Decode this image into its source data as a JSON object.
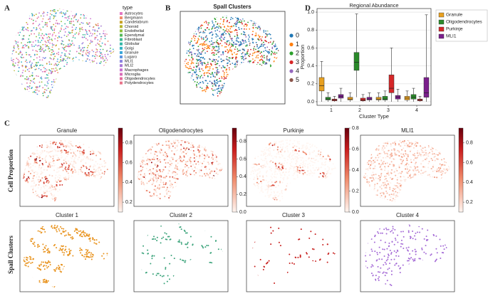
{
  "panel_labels": [
    "A",
    "B",
    "C",
    "D"
  ],
  "panel_a": {
    "legend_title": "type",
    "types": [
      {
        "name": "Astrocytes",
        "color": "#e377c2"
      },
      {
        "name": "Bergmann",
        "color": "#f08c6a"
      },
      {
        "name": "Candelabrum",
        "color": "#c9a227"
      },
      {
        "name": "Choroid",
        "color": "#b5b52a"
      },
      {
        "name": "Endothelial",
        "color": "#8fbf3a"
      },
      {
        "name": "Ependymal",
        "color": "#54b85a"
      },
      {
        "name": "Fibroblast",
        "color": "#3cb88f"
      },
      {
        "name": "Globular",
        "color": "#34b7a8"
      },
      {
        "name": "Golgi",
        "color": "#33b3c4"
      },
      {
        "name": "Granule",
        "color": "#3aa6d8"
      },
      {
        "name": "Lugaro",
        "color": "#5d95e0"
      },
      {
        "name": "MLI1",
        "color": "#8a84e0"
      },
      {
        "name": "MLI2",
        "color": "#a878d8"
      },
      {
        "name": "Macrophages",
        "color": "#c86fcf"
      },
      {
        "name": "Microglia",
        "color": "#d96bb8"
      },
      {
        "name": "Oligodendrocytes",
        "color": "#e36e9c"
      },
      {
        "name": "Polydendrocytes",
        "color": "#e8748a"
      }
    ]
  },
  "panel_b": {
    "title": "Spall Clusters",
    "clusters": [
      {
        "name": "0",
        "color": "#1f77b4"
      },
      {
        "name": "1",
        "color": "#ff7f0e"
      },
      {
        "name": "2",
        "color": "#2ca02c"
      },
      {
        "name": "3",
        "color": "#d62728"
      },
      {
        "name": "4",
        "color": "#9467bd"
      },
      {
        "name": "5",
        "color": "#8c564b"
      }
    ]
  },
  "chart_data": {
    "type": "box",
    "title": "Regional Abundance",
    "x_label": "Cluster Type",
    "y_label": "Proportion",
    "categories": [
      1,
      2,
      3,
      4
    ],
    "ylim": [
      -0.04,
      1.04
    ],
    "yticks": [
      {
        "value": 0,
        "label": "0.0"
      },
      0.2,
      0.4,
      0.6,
      0.8,
      {
        "value": 1,
        "label": "1.0"
      }
    ],
    "grid": true,
    "series": [
      {
        "name": "Granule",
        "color": "#e8a020",
        "q1": [
          0.12,
          0.02,
          0.02,
          0.02
        ],
        "median": [
          0.18,
          0.03,
          0.03,
          0.04
        ],
        "q3": [
          0.27,
          0.05,
          0.05,
          0.06
        ],
        "low": [
          0,
          0,
          0,
          0
        ],
        "high": [
          0.45,
          0.1,
          0.1,
          0.12
        ]
      },
      {
        "name": "Oligodendrocytes",
        "color": "#2a8a2a",
        "q1": [
          0.02,
          0.35,
          0.02,
          0.03
        ],
        "median": [
          0.03,
          0.44,
          0.03,
          0.05
        ],
        "q3": [
          0.05,
          0.55,
          0.06,
          0.08
        ],
        "low": [
          0,
          0.05,
          0,
          0
        ],
        "high": [
          0.1,
          0.98,
          0.12,
          0.15
        ]
      },
      {
        "name": "Purkinje",
        "color": "#d62728",
        "q1": [
          0.01,
          0.01,
          0.1,
          0.01
        ],
        "median": [
          0.02,
          0.02,
          0.15,
          0.02
        ],
        "q3": [
          0.03,
          0.04,
          0.3,
          0.03
        ],
        "low": [
          0,
          0,
          0,
          0
        ],
        "high": [
          0.06,
          0.08,
          0.6,
          0.06
        ]
      },
      {
        "name": "MLI1",
        "color": "#7b1f8c",
        "q1": [
          0.04,
          0.02,
          0.03,
          0.05
        ],
        "median": [
          0.06,
          0.03,
          0.05,
          0.1
        ],
        "q3": [
          0.08,
          0.05,
          0.07,
          0.27
        ],
        "low": [
          0,
          0,
          0,
          0
        ],
        "high": [
          0.15,
          0.1,
          0.14,
          0.97
        ]
      }
    ]
  },
  "panel_c": {
    "row_labels": [
      "Cell Proportion",
      "Spall Clusters"
    ],
    "proportion_maps": [
      {
        "title": "Granule",
        "clim": [
          0.1,
          0.95
        ],
        "ticks": [
          0.2,
          0.4,
          0.6,
          0.8
        ]
      },
      {
        "title": "Oligodendrocytes",
        "clim": [
          0,
          0.95
        ],
        "ticks": [
          {
            "value": 0,
            "label": "0.0"
          },
          0.2,
          0.4,
          0.6,
          0.8
        ]
      },
      {
        "title": "Purkinje",
        "clim": [
          0,
          0.8
        ],
        "ticks": [
          {
            "value": 0,
            "label": "0.0"
          },
          0.2,
          0.4,
          0.6,
          0.8
        ]
      },
      {
        "title": "MLI1",
        "clim": [
          0.1,
          0.95
        ],
        "ticks": [
          0.2,
          0.4,
          0.6,
          0.8
        ]
      }
    ],
    "cluster_maps": [
      {
        "title": "Cluster 1",
        "color": "#e8921c"
      },
      {
        "title": "Cluster 2",
        "color": "#3aa37a"
      },
      {
        "title": "Cluster 3",
        "color": "#c8201e"
      },
      {
        "title": "Cluster 4",
        "color": "#a46ad6"
      }
    ]
  }
}
